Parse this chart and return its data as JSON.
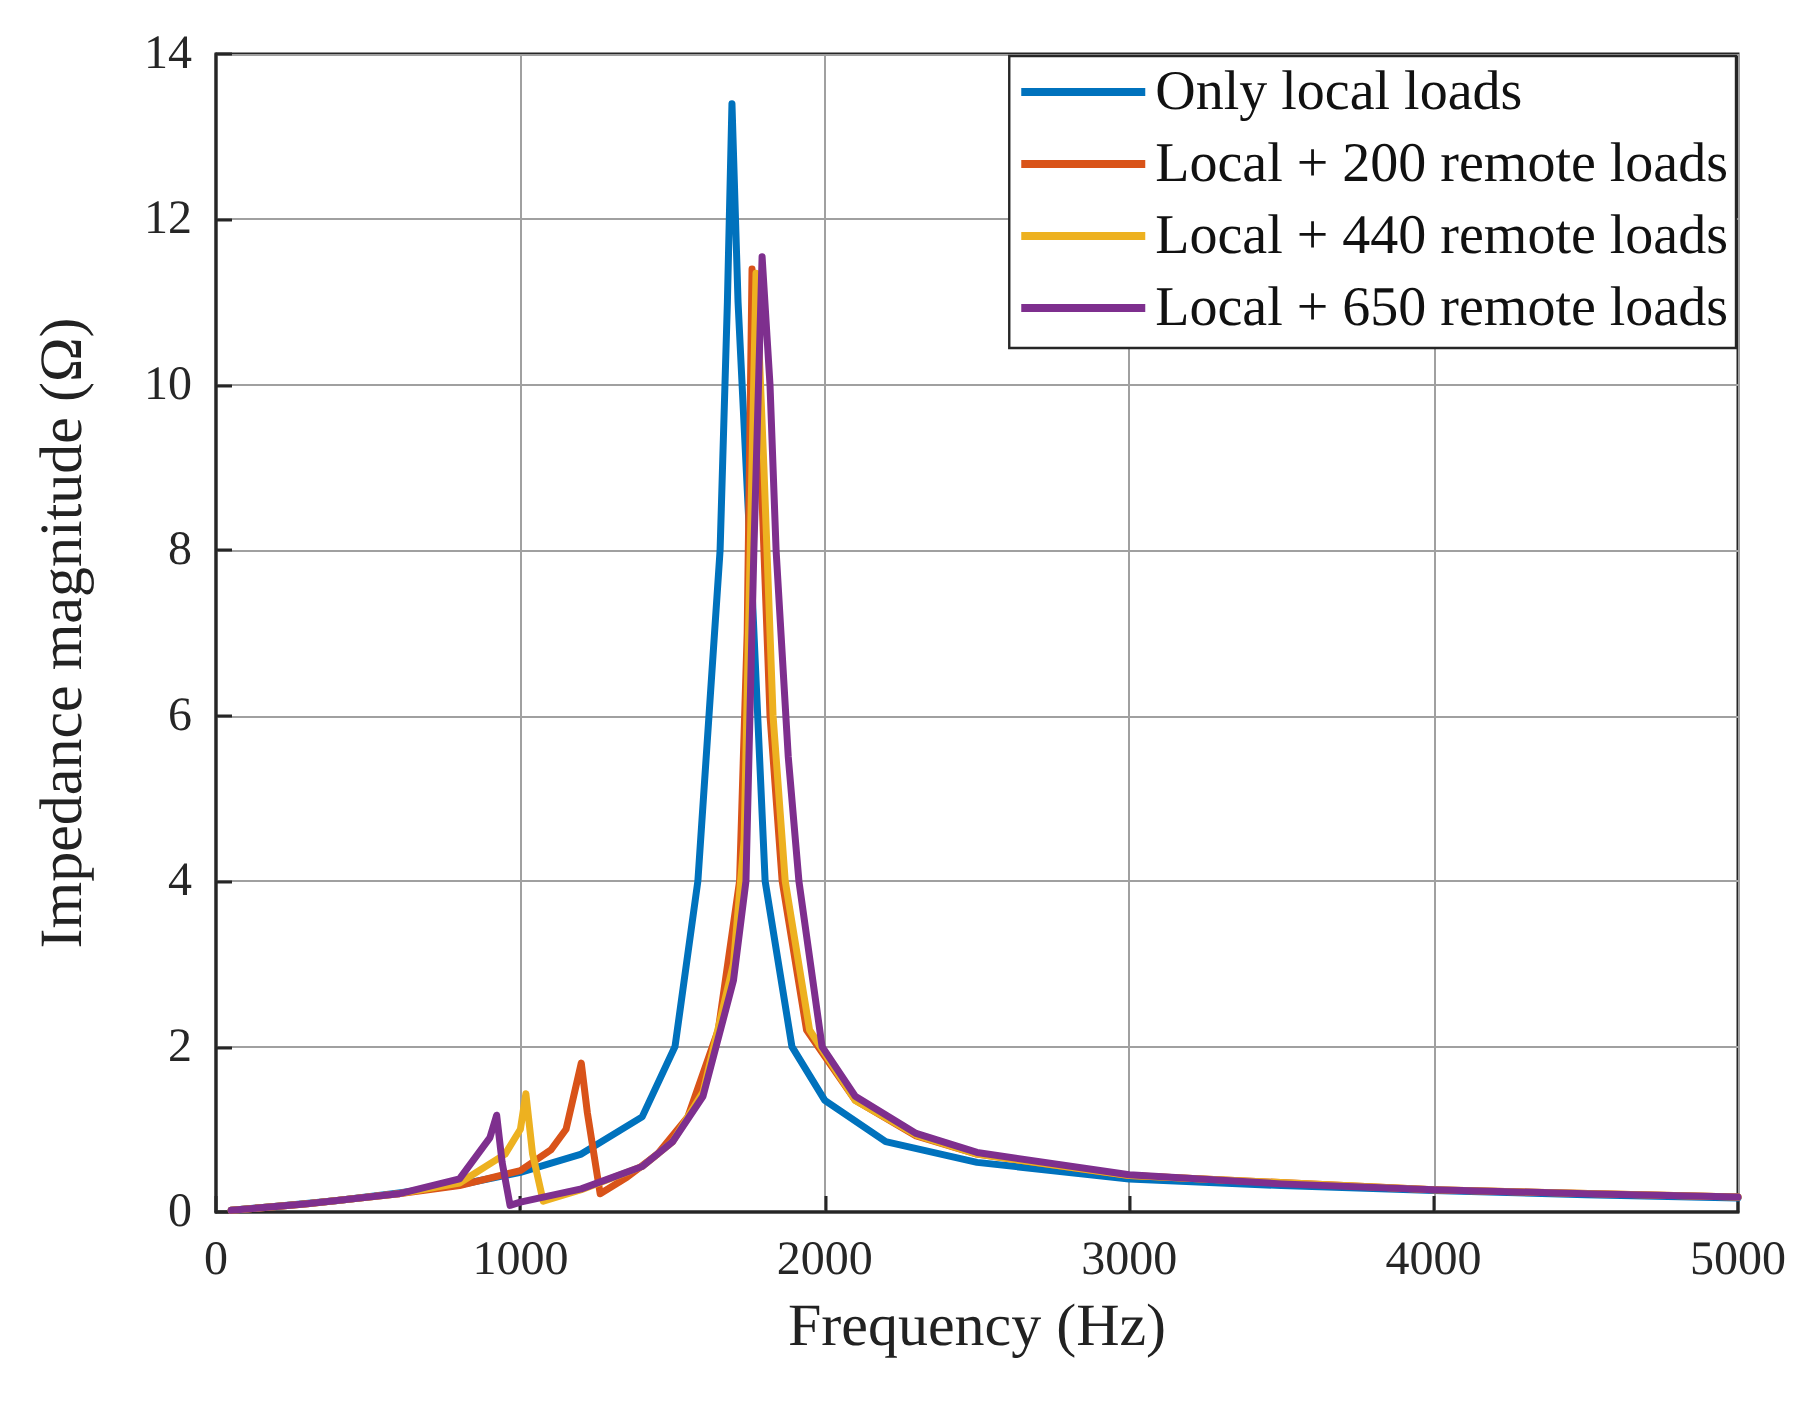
{
  "chart_data": {
    "type": "line",
    "xlabel": "Frequency (Hz)",
    "ylabel": "Impedance magnitude (Ω)",
    "xlim": [
      0,
      5000
    ],
    "xticks": [
      0,
      1000,
      2000,
      3000,
      4000,
      5000
    ],
    "ylim": [
      0,
      14
    ],
    "yticks": [
      0,
      2,
      4,
      6,
      8,
      10,
      12,
      14
    ],
    "grid": true,
    "legend": "top right",
    "marker": "none",
    "line_style": "solid",
    "series": [
      {
        "name": "Only local loads",
        "color": "#0072bd",
        "x": [
          50,
          200,
          400,
          600,
          800,
          1000,
          1200,
          1400,
          1508,
          1583,
          1656,
          1680,
          1695,
          1715,
          1755,
          1804,
          1892,
          2000,
          2200,
          2500,
          3000,
          3500,
          4000,
          4500,
          5000
        ],
        "values": [
          0.02,
          0.07,
          0.14,
          0.23,
          0.33,
          0.48,
          0.7,
          1.15,
          2,
          4,
          8,
          11,
          13.4,
          11,
          8,
          4,
          2,
          1.35,
          0.85,
          0.6,
          0.4,
          0.32,
          0.26,
          0.21,
          0.17
        ]
      },
      {
        "name": "Local + 200 remote loads",
        "color": "#d95319",
        "x": [
          50,
          300,
          600,
          800,
          1000,
          1100,
          1150,
          1200,
          1220,
          1262,
          1350,
          1450,
          1550,
          1650,
          1720,
          1745,
          1761,
          1790,
          1820,
          1860,
          1940,
          2100,
          2300,
          2500,
          3000,
          4000,
          5000
        ],
        "values": [
          0.02,
          0.1,
          0.22,
          0.32,
          0.5,
          0.75,
          1.0,
          1.8,
          1.2,
          0.22,
          0.42,
          0.7,
          1.15,
          2.2,
          4,
          7,
          11.4,
          9,
          6,
          4,
          2.2,
          1.35,
          0.92,
          0.7,
          0.44,
          0.27,
          0.18
        ]
      },
      {
        "name": "Local + 440 remote loads",
        "color": "#edb120",
        "x": [
          50,
          300,
          600,
          800,
          950,
          1000,
          1018,
          1040,
          1075,
          1200,
          1400,
          1500,
          1600,
          1700,
          1735,
          1755,
          1774,
          1800,
          1830,
          1870,
          1950,
          2100,
          2300,
          2500,
          3000,
          4000,
          5000
        ],
        "values": [
          0.02,
          0.1,
          0.22,
          0.35,
          0.7,
          1.0,
          1.43,
          0.7,
          0.13,
          0.27,
          0.55,
          0.85,
          1.45,
          3.0,
          4.5,
          8,
          11.35,
          9,
          6,
          4,
          2.2,
          1.35,
          0.93,
          0.7,
          0.44,
          0.27,
          0.18
        ]
      },
      {
        "name": "Local + 650 remote loads",
        "color": "#7e2f8e",
        "x": [
          50,
          300,
          600,
          800,
          900,
          922,
          940,
          966,
          1000,
          1200,
          1400,
          1500,
          1600,
          1700,
          1741,
          1767,
          1794,
          1820,
          1840,
          1880,
          1915,
          1991,
          2100,
          2300,
          2500,
          3000,
          3500,
          4000,
          4500,
          5000
        ],
        "values": [
          0.02,
          0.1,
          0.22,
          0.4,
          0.9,
          1.17,
          0.6,
          0.08,
          0.12,
          0.28,
          0.55,
          0.85,
          1.4,
          2.8,
          4,
          8,
          11.55,
          10,
          8,
          5.5,
          4,
          2,
          1.4,
          0.95,
          0.72,
          0.45,
          0.34,
          0.27,
          0.22,
          0.18
        ]
      }
    ]
  }
}
